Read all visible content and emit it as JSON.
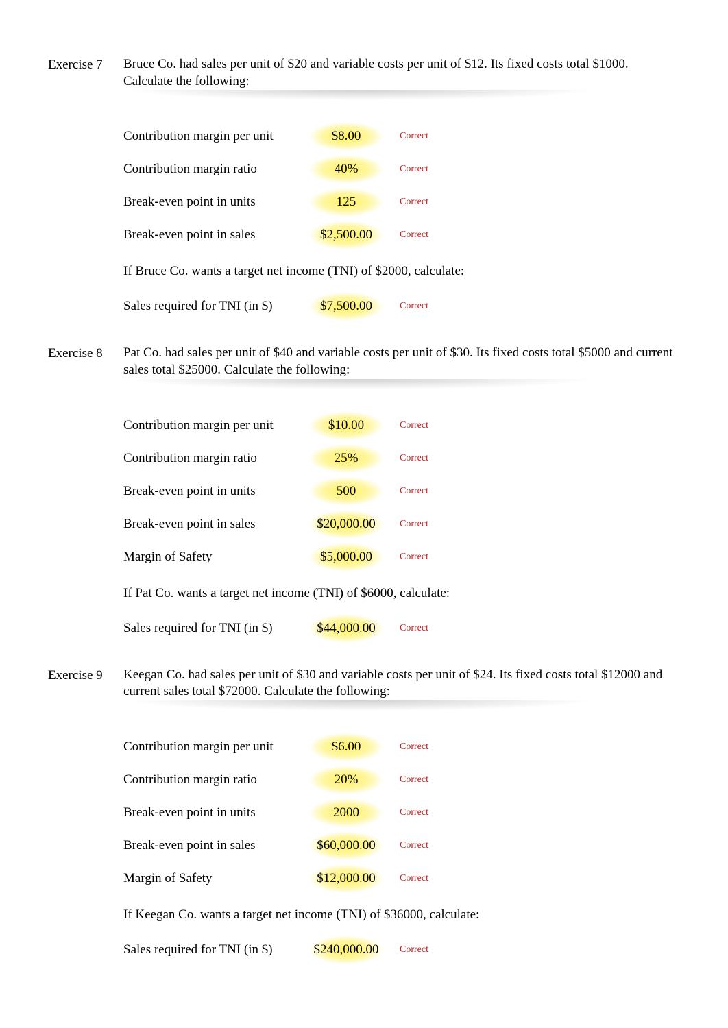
{
  "exercises": [
    {
      "label": "Exercise 7",
      "prompt": "Bruce Co. had sales per unit of $20 and variable costs per unit of $12.  Its fixed costs total $1000.  Calculate the following:",
      "rows": [
        {
          "label": "Contribution margin per unit",
          "value": "$8.00",
          "status": "Correct"
        },
        {
          "label": "Contribution margin ratio",
          "value": "40%",
          "status": "Correct"
        },
        {
          "label": "Break-even point in units",
          "value": "125",
          "status": "Correct"
        },
        {
          "label": "Break-even point in sales",
          "value": "$2,500.00",
          "status": "Correct"
        }
      ],
      "subprompt": "If Bruce Co. wants a target net income (TNI) of $2000, calculate:",
      "subrows": [
        {
          "label": "Sales required for TNI (in $)",
          "value": "$7,500.00",
          "status": "Correct"
        }
      ]
    },
    {
      "label": "Exercise 8",
      "prompt": "Pat Co. had sales per unit of $40 and variable costs per unit of $30.   Its fixed costs total $5000 and current sales total $25000.   Calculate the following:",
      "rows": [
        {
          "label": "Contribution margin per unit",
          "value": "$10.00",
          "status": "Correct"
        },
        {
          "label": "Contribution margin ratio",
          "value": "25%",
          "status": "Correct"
        },
        {
          "label": "Break-even point in units",
          "value": "500",
          "status": "Correct"
        },
        {
          "label": "Break-even point in sales",
          "value": "$20,000.00",
          "status": "Correct"
        },
        {
          "label": "Margin of Safety",
          "value": "$5,000.00",
          "status": "Correct"
        }
      ],
      "subprompt": "If Pat Co. wants a target net income (TNI) of $6000, calculate:",
      "subrows": [
        {
          "label": "Sales required for TNI (in $)",
          "value": "$44,000.00",
          "status": "Correct"
        }
      ]
    },
    {
      "label": "Exercise 9",
      "prompt": "Keegan Co. had sales per unit of $30 and variable costs per unit of $24.  Its fixed costs total $12000 and current sales total $72000.   Calculate the following:",
      "rows": [
        {
          "label": "Contribution margin per unit",
          "value": "$6.00",
          "status": "Correct"
        },
        {
          "label": "Contribution margin ratio",
          "value": "20%",
          "status": "Correct"
        },
        {
          "label": "Break-even point in units",
          "value": "2000",
          "status": "Correct"
        },
        {
          "label": "Break-even point in sales",
          "value": "$60,000.00",
          "status": "Correct"
        },
        {
          "label": "Margin of Safety",
          "value": "$12,000.00",
          "status": "Correct"
        }
      ],
      "subprompt": "If Keegan Co. wants a target net income (TNI) of $36000, calculate:",
      "subrows": [
        {
          "label": "Sales required for TNI (in $)",
          "value": "$240,000.00",
          "status": "Correct"
        }
      ]
    }
  ],
  "colors": {
    "status_text": "#c02020",
    "glow": "#fff05a",
    "background": "#ffffff",
    "text": "#000000"
  }
}
